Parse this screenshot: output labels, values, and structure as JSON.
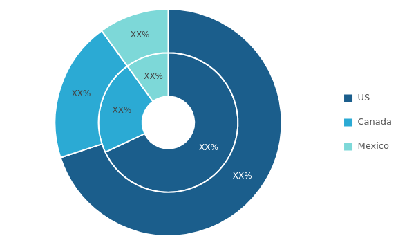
{
  "chart_data": {
    "type": "doughnut",
    "categories": [
      "US",
      "Canada",
      "Mexico"
    ],
    "series": [
      {
        "values": [
          70,
          20,
          10
        ],
        "colors": [
          "#1b5e8c",
          "#2baad4",
          "#7dd8d8"
        ],
        "value_labels": [
          "XX%",
          "XX%",
          "XX%"
        ]
      },
      {
        "values": [
          68,
          22,
          10
        ],
        "colors": [
          "#1b5e8c",
          "#2baad4",
          "#7dd8d8"
        ],
        "value_labels": [
          "XX%",
          "XX%",
          "XX%"
        ]
      }
    ],
    "data_labels": true,
    "legend": "right"
  }
}
